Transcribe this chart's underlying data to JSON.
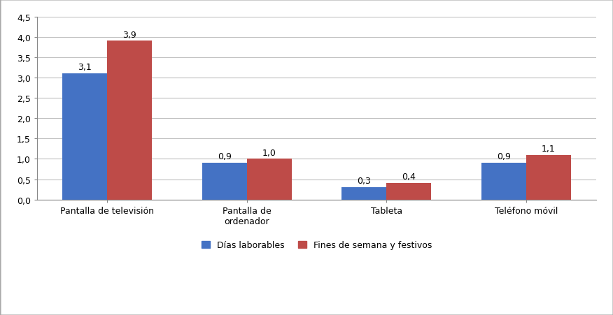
{
  "categories": [
    "Pantalla de televisión",
    "Pantalla de\nordenador",
    "Tableta",
    "Teléfono móvil"
  ],
  "series": [
    {
      "label": "Días laborables",
      "values": [
        3.1,
        0.9,
        0.3,
        0.9
      ],
      "color": "#4472C4"
    },
    {
      "label": "Fines de semana y festivos",
      "values": [
        3.9,
        1.0,
        0.4,
        1.1
      ],
      "color": "#BE4B48"
    }
  ],
  "ylim": [
    0,
    4.5
  ],
  "yticks": [
    0.0,
    0.5,
    1.0,
    1.5,
    2.0,
    2.5,
    3.0,
    3.5,
    4.0,
    4.5
  ],
  "ytick_labels": [
    "0,0",
    "0,5",
    "1,0",
    "1,5",
    "2,0",
    "2,5",
    "3,0",
    "3,5",
    "4,0",
    "4,5"
  ],
  "bar_width": 0.32,
  "value_label_fontsize": 9,
  "axis_fontsize": 9,
  "legend_fontsize": 9,
  "background_color": "#FFFFFF",
  "grid_color": "#C0C0C0",
  "border_color": "#AAAAAA"
}
